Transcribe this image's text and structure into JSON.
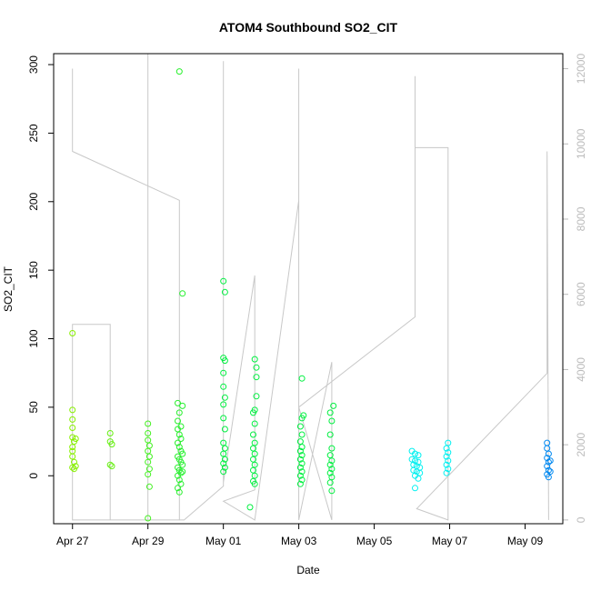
{
  "chart_data": {
    "type": "scatter",
    "title": "ATOM4 Southbound SO2_CIT",
    "xlabel": "Date",
    "ylabel": "SO2_CIT",
    "x_axis": {
      "type": "date",
      "range": [
        "2016-04-26T12:00",
        "2016-05-10T00:00"
      ],
      "ticks": [
        {
          "value": "2016-04-27",
          "label": "Apr 27"
        },
        {
          "value": "2016-04-29",
          "label": "Apr 29"
        },
        {
          "value": "2016-05-01",
          "label": "May 01"
        },
        {
          "value": "2016-05-03",
          "label": "May 03"
        },
        {
          "value": "2016-05-05",
          "label": "May 05"
        },
        {
          "value": "2016-05-07",
          "label": "May 07"
        },
        {
          "value": "2016-05-09",
          "label": "May 09"
        }
      ]
    },
    "y_axis": {
      "range": [
        -35,
        308
      ],
      "ticks": [
        0,
        50,
        100,
        150,
        200,
        250,
        300
      ]
    },
    "y2_axis": {
      "range": [
        -100,
        12400
      ],
      "ticks": [
        0,
        2000,
        4000,
        6000,
        8000,
        10000,
        12000
      ],
      "color": "#bbbbbb"
    },
    "grid": false,
    "colors": {
      "points_start": "#88f000",
      "points_mid": "#00f040",
      "points_cyan": "#00f0f0",
      "points_end": "#0088f0",
      "trace": "#c8c8c8",
      "frame": "#000000"
    },
    "series": [
      {
        "values": [
          {
            "x": "2016-04-27T00:00",
            "y": 104
          },
          {
            "x": "2016-04-27T00:00",
            "y": 48
          },
          {
            "x": "2016-04-27T00:00",
            "y": 41
          },
          {
            "x": "2016-04-27T00:00",
            "y": 35
          },
          {
            "x": "2016-04-27T00:00",
            "y": 28
          },
          {
            "x": "2016-04-27T01:00",
            "y": 25
          },
          {
            "x": "2016-04-27T00:00",
            "y": 21
          },
          {
            "x": "2016-04-27T00:00",
            "y": 18
          },
          {
            "x": "2016-04-27T00:00",
            "y": 14
          },
          {
            "x": "2016-04-27T01:00",
            "y": 10
          },
          {
            "x": "2016-04-27T00:00",
            "y": 6
          },
          {
            "x": "2016-04-27T01:00",
            "y": 5
          },
          {
            "x": "2016-04-27T02:00",
            "y": 27
          },
          {
            "x": "2016-04-27T02:00",
            "y": 7
          },
          {
            "x": "2016-04-28T00:00",
            "y": 31
          },
          {
            "x": "2016-04-28T00:00",
            "y": 25
          },
          {
            "x": "2016-04-28T01:00",
            "y": 23
          },
          {
            "x": "2016-04-28T00:00",
            "y": 8
          },
          {
            "x": "2016-04-28T01:00",
            "y": 7
          },
          {
            "x": "2016-04-29T00:00",
            "y": 38
          },
          {
            "x": "2016-04-29T00:00",
            "y": 31
          },
          {
            "x": "2016-04-29T00:00",
            "y": 26
          },
          {
            "x": "2016-04-29T01:00",
            "y": 22
          },
          {
            "x": "2016-04-29T00:00",
            "y": 18
          },
          {
            "x": "2016-04-29T01:00",
            "y": 14
          },
          {
            "x": "2016-04-29T00:00",
            "y": 10
          },
          {
            "x": "2016-04-29T01:00",
            "y": 5
          },
          {
            "x": "2016-04-29T00:00",
            "y": 1
          },
          {
            "x": "2016-04-29T01:00",
            "y": -8
          },
          {
            "x": "2016-04-29T00:00",
            "y": -31
          },
          {
            "x": "2016-04-29T20:00",
            "y": 295
          },
          {
            "x": "2016-04-29T22:00",
            "y": 133
          },
          {
            "x": "2016-04-29T19:00",
            "y": 53
          },
          {
            "x": "2016-04-29T22:00",
            "y": 51
          },
          {
            "x": "2016-04-29T20:00",
            "y": 46
          },
          {
            "x": "2016-04-29T19:00",
            "y": 40
          },
          {
            "x": "2016-04-29T21:00",
            "y": 36
          },
          {
            "x": "2016-04-29T19:00",
            "y": 34
          },
          {
            "x": "2016-04-29T20:00",
            "y": 30
          },
          {
            "x": "2016-04-29T21:00",
            "y": 27
          },
          {
            "x": "2016-04-29T19:00",
            "y": 24
          },
          {
            "x": "2016-04-29T20:00",
            "y": 21
          },
          {
            "x": "2016-04-29T21:00",
            "y": 18
          },
          {
            "x": "2016-04-29T22:00",
            "y": 16
          },
          {
            "x": "2016-04-29T19:00",
            "y": 14
          },
          {
            "x": "2016-04-29T20:00",
            "y": 12
          },
          {
            "x": "2016-04-29T21:00",
            "y": 10
          },
          {
            "x": "2016-04-29T22:00",
            "y": 8
          },
          {
            "x": "2016-04-29T19:00",
            "y": 6
          },
          {
            "x": "2016-04-29T20:00",
            "y": 4
          },
          {
            "x": "2016-04-29T21:00",
            "y": 2
          },
          {
            "x": "2016-04-29T19:00",
            "y": 0
          },
          {
            "x": "2016-04-29T20:00",
            "y": -3
          },
          {
            "x": "2016-04-29T21:00",
            "y": -6
          },
          {
            "x": "2016-04-29T19:00",
            "y": -9
          },
          {
            "x": "2016-04-29T20:00",
            "y": -12
          },
          {
            "x": "2016-04-29T22:00",
            "y": 3
          },
          {
            "x": "2016-05-01T00:00",
            "y": 142
          },
          {
            "x": "2016-05-01T01:00",
            "y": 134
          },
          {
            "x": "2016-05-01T00:00",
            "y": 86
          },
          {
            "x": "2016-05-01T01:00",
            "y": 84
          },
          {
            "x": "2016-05-01T00:00",
            "y": 75
          },
          {
            "x": "2016-05-01T00:00",
            "y": 65
          },
          {
            "x": "2016-05-01T01:00",
            "y": 57
          },
          {
            "x": "2016-05-01T00:00",
            "y": 52
          },
          {
            "x": "2016-05-01T00:00",
            "y": 42
          },
          {
            "x": "2016-05-01T01:00",
            "y": 34
          },
          {
            "x": "2016-05-01T00:00",
            "y": 24
          },
          {
            "x": "2016-05-01T01:00",
            "y": 20
          },
          {
            "x": "2016-05-01T00:00",
            "y": 16
          },
          {
            "x": "2016-05-01T01:00",
            "y": 12
          },
          {
            "x": "2016-05-01T00:00",
            "y": 9
          },
          {
            "x": "2016-05-01T01:00",
            "y": 6
          },
          {
            "x": "2016-05-01T00:00",
            "y": 3
          },
          {
            "x": "2016-05-01T20:00",
            "y": 85
          },
          {
            "x": "2016-05-01T21:00",
            "y": 79
          },
          {
            "x": "2016-05-01T21:00",
            "y": 72
          },
          {
            "x": "2016-05-01T21:00",
            "y": 58
          },
          {
            "x": "2016-05-01T20:00",
            "y": 48
          },
          {
            "x": "2016-05-01T19:00",
            "y": 46
          },
          {
            "x": "2016-05-01T20:00",
            "y": 38
          },
          {
            "x": "2016-05-01T19:00",
            "y": 30
          },
          {
            "x": "2016-05-01T20:00",
            "y": 24
          },
          {
            "x": "2016-05-01T19:00",
            "y": 20
          },
          {
            "x": "2016-05-01T20:00",
            "y": 16
          },
          {
            "x": "2016-05-01T19:00",
            "y": 12
          },
          {
            "x": "2016-05-01T20:00",
            "y": 8
          },
          {
            "x": "2016-05-01T19:00",
            "y": 4
          },
          {
            "x": "2016-05-01T20:00",
            "y": 0
          },
          {
            "x": "2016-05-01T19:00",
            "y": -4
          },
          {
            "x": "2016-05-01T20:00",
            "y": -6
          },
          {
            "x": "2016-05-01T17:00",
            "y": -23
          },
          {
            "x": "2016-05-03T02:00",
            "y": 71
          },
          {
            "x": "2016-05-03T03:00",
            "y": 44
          },
          {
            "x": "2016-05-03T02:00",
            "y": 42
          },
          {
            "x": "2016-05-03T01:00",
            "y": 36
          },
          {
            "x": "2016-05-03T02:00",
            "y": 30
          },
          {
            "x": "2016-05-03T01:00",
            "y": 25
          },
          {
            "x": "2016-05-03T02:00",
            "y": 21
          },
          {
            "x": "2016-05-03T01:00",
            "y": 18
          },
          {
            "x": "2016-05-03T02:00",
            "y": 15
          },
          {
            "x": "2016-05-03T01:00",
            "y": 12
          },
          {
            "x": "2016-05-03T02:00",
            "y": 9
          },
          {
            "x": "2016-05-03T01:00",
            "y": 6
          },
          {
            "x": "2016-05-03T02:00",
            "y": 3
          },
          {
            "x": "2016-05-03T01:00",
            "y": 0
          },
          {
            "x": "2016-05-03T02:00",
            "y": -3
          },
          {
            "x": "2016-05-03T01:00",
            "y": -6
          },
          {
            "x": "2016-05-03T22:00",
            "y": 51
          },
          {
            "x": "2016-05-03T20:00",
            "y": 46
          },
          {
            "x": "2016-05-03T21:00",
            "y": 40
          },
          {
            "x": "2016-05-03T20:00",
            "y": 30
          },
          {
            "x": "2016-05-03T21:00",
            "y": 20
          },
          {
            "x": "2016-05-03T20:00",
            "y": 15
          },
          {
            "x": "2016-05-03T21:00",
            "y": 11
          },
          {
            "x": "2016-05-03T20:00",
            "y": 8
          },
          {
            "x": "2016-05-03T21:00",
            "y": 5
          },
          {
            "x": "2016-05-03T20:00",
            "y": 2
          },
          {
            "x": "2016-05-03T21:00",
            "y": -1
          },
          {
            "x": "2016-05-03T20:00",
            "y": -5
          },
          {
            "x": "2016-05-03T21:00",
            "y": -11
          },
          {
            "x": "2016-05-06T00:00",
            "y": 18
          },
          {
            "x": "2016-05-06T02:00",
            "y": 16
          },
          {
            "x": "2016-05-06T04:00",
            "y": 15
          },
          {
            "x": "2016-05-06T00:00",
            "y": 12
          },
          {
            "x": "2016-05-06T02:00",
            "y": 11
          },
          {
            "x": "2016-05-06T04:00",
            "y": 10
          },
          {
            "x": "2016-05-06T01:00",
            "y": 8
          },
          {
            "x": "2016-05-06T03:00",
            "y": 7
          },
          {
            "x": "2016-05-06T05:00",
            "y": 6
          },
          {
            "x": "2016-05-06T01:00",
            "y": 4
          },
          {
            "x": "2016-05-06T03:00",
            "y": 3
          },
          {
            "x": "2016-05-06T05:00",
            "y": 2
          },
          {
            "x": "2016-05-06T02:00",
            "y": 0
          },
          {
            "x": "2016-05-06T04:00",
            "y": -2
          },
          {
            "x": "2016-05-06T02:00",
            "y": -9
          },
          {
            "x": "2016-05-06T23:00",
            "y": 24
          },
          {
            "x": "2016-05-06T22:00",
            "y": 20
          },
          {
            "x": "2016-05-06T23:00",
            "y": 17
          },
          {
            "x": "2016-05-06T22:00",
            "y": 14
          },
          {
            "x": "2016-05-06T23:00",
            "y": 11
          },
          {
            "x": "2016-05-06T22:00",
            "y": 8
          },
          {
            "x": "2016-05-06T23:00",
            "y": 5
          },
          {
            "x": "2016-05-06T22:00",
            "y": 2
          },
          {
            "x": "2016-05-09T14:00",
            "y": 24
          },
          {
            "x": "2016-05-09T14:00",
            "y": 20
          },
          {
            "x": "2016-05-09T15:00",
            "y": 16
          },
          {
            "x": "2016-05-09T14:00",
            "y": 13
          },
          {
            "x": "2016-05-09T15:00",
            "y": 10
          },
          {
            "x": "2016-05-09T14:00",
            "y": 7
          },
          {
            "x": "2016-05-09T15:00",
            "y": 4
          },
          {
            "x": "2016-05-09T14:00",
            "y": 1
          },
          {
            "x": "2016-05-09T15:00",
            "y": -1
          },
          {
            "x": "2016-05-09T16:00",
            "y": 11
          },
          {
            "x": "2016-05-09T16:00",
            "y": 3
          }
        ]
      }
    ],
    "y2_trace": [
      {
        "x": "2016-04-27T00:00",
        "y": 12000
      },
      {
        "x": "2016-04-27T00:00",
        "y": 9800
      },
      {
        "x": "2016-04-29T20:00",
        "y": 8500
      },
      {
        "x": "2016-04-29T20:00",
        "y": 0
      },
      {
        "x": "2016-04-27T00:00",
        "y": 0
      },
      {
        "x": "2016-04-27T00:00",
        "y": 5200
      },
      {
        "x": "2016-04-28T00:00",
        "y": 5200
      },
      {
        "x": "2016-04-28T00:00",
        "y": 0
      },
      {
        "x": "2016-04-29T00:00",
        "y": 0
      },
      {
        "x": "2016-04-29T00:00",
        "y": 12400
      },
      {
        "x": "2016-04-29T00:00",
        "y": 0
      },
      {
        "x": "2016-04-29T23:00",
        "y": 0
      },
      {
        "x": "2016-05-01T00:00",
        "y": 900
      },
      {
        "x": "2016-05-01T00:00",
        "y": 12200
      },
      {
        "x": "2016-05-01T00:00",
        "y": 1000
      },
      {
        "x": "2016-05-01T20:00",
        "y": 6500
      },
      {
        "x": "2016-05-01T20:00",
        "y": 800
      },
      {
        "x": "2016-05-01T00:00",
        "y": 500
      },
      {
        "x": "2016-05-01T20:00",
        "y": 0
      },
      {
        "x": "2016-05-03T00:00",
        "y": 8500
      },
      {
        "x": "2016-05-03T00:00",
        "y": 12000
      },
      {
        "x": "2016-05-03T00:00",
        "y": 0
      },
      {
        "x": "2016-05-03T21:00",
        "y": 4200
      },
      {
        "x": "2016-05-03T21:00",
        "y": 0
      },
      {
        "x": "2016-05-03T00:00",
        "y": 3000
      },
      {
        "x": "2016-05-06T02:00",
        "y": 5400
      },
      {
        "x": "2016-05-06T02:00",
        "y": 11800
      },
      {
        "x": "2016-05-06T02:00",
        "y": 9900
      },
      {
        "x": "2016-05-06T23:00",
        "y": 9900
      },
      {
        "x": "2016-05-06T23:00",
        "y": 0
      },
      {
        "x": "2016-05-06T03:00",
        "y": 300
      },
      {
        "x": "2016-05-09T14:00",
        "y": 3900
      },
      {
        "x": "2016-05-09T14:00",
        "y": 9800
      },
      {
        "x": "2016-05-09T15:00",
        "y": 0
      }
    ]
  }
}
